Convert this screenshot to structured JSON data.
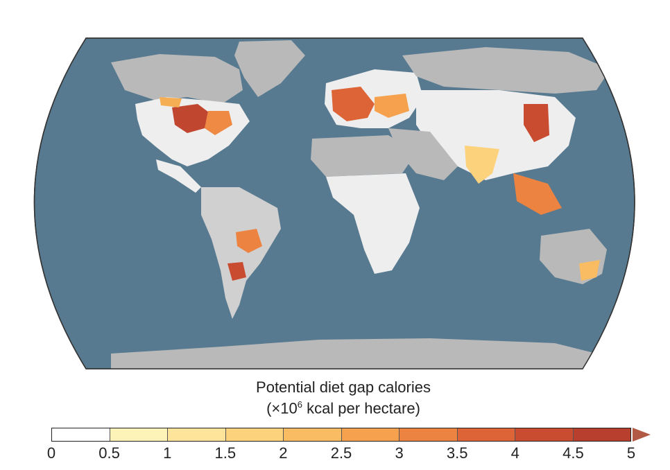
{
  "legend": {
    "title_line1": "Potential diet gap calories",
    "title_line2_prefix": "(×10",
    "title_line2_exp": "6",
    "title_line2_suffix": " kcal per hectare)",
    "ticks": [
      "0",
      "0.5",
      "1",
      "1.5",
      "2",
      "2.5",
      "3",
      "3.5",
      "4",
      "4.5",
      "5"
    ],
    "colors": [
      "#ffffff",
      "#fdf2b8",
      "#fde49a",
      "#fcd27d",
      "#f9bc62",
      "#f5a14d",
      "#ec8340",
      "#dd6436",
      "#c94b30",
      "#b83e2e"
    ],
    "overflow_arrow_color": "#b25a45"
  },
  "map": {
    "projection": "Robinson",
    "ocean_color": "#587a90",
    "nodata_land_color": "#b9b9b9",
    "low_value_land_color": "#eeeeee"
  }
}
